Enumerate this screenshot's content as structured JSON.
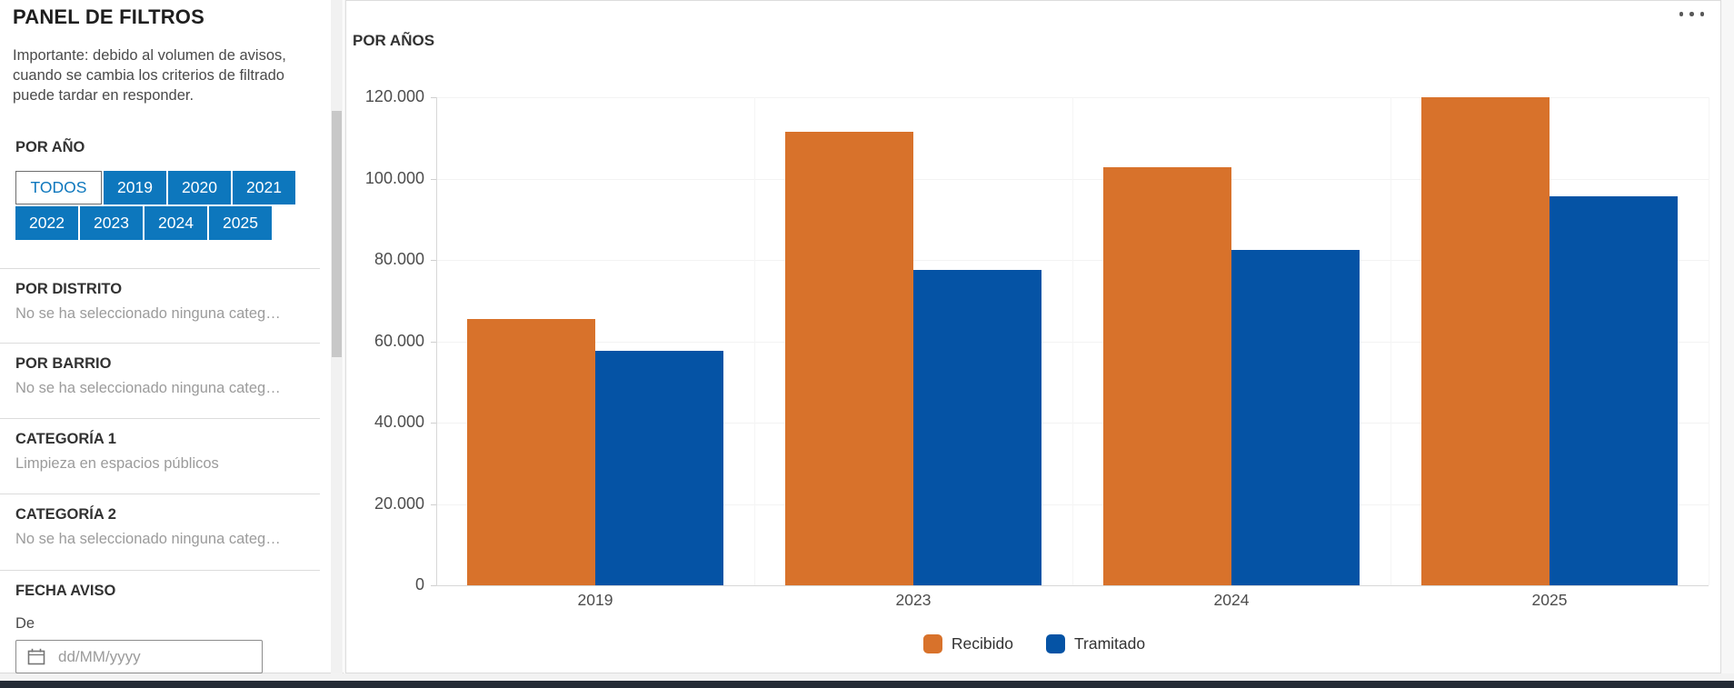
{
  "panel": {
    "title": "PANEL DE FILTROS",
    "notice": "Importante: debido al volumen de avisos, cuando se cambia los criterios de filtrado puede tardar en responder.",
    "year_filter": {
      "label": "POR AÑO",
      "options": [
        "TODOS",
        "2019",
        "2020",
        "2021",
        "2022",
        "2023",
        "2024",
        "2025"
      ],
      "selected": "TODOS"
    },
    "sections": [
      {
        "label": "POR DISTRITO",
        "value": "No se ha seleccionado ninguna categ…"
      },
      {
        "label": "POR BARRIO",
        "value": "No se ha seleccionado ninguna categ…"
      },
      {
        "label": "CATEGORÍA 1",
        "value": "Limpieza en espacios públicos"
      },
      {
        "label": "CATEGORÍA 2",
        "value": "No se ha seleccionado ninguna categ…"
      }
    ],
    "fecha_aviso": {
      "label": "FECHA AVISO",
      "from_label": "De",
      "date_placeholder": "dd/MM/yyyy"
    }
  },
  "chart_data": {
    "type": "bar",
    "title": "POR AÑOS",
    "categories": [
      "2019",
      "2023",
      "2024",
      "2025"
    ],
    "series": [
      {
        "name": "Recibido",
        "color": "#d8722b",
        "values": [
          65500,
          111400,
          102900,
          120100
        ]
      },
      {
        "name": "Tramitado",
        "color": "#0553a5",
        "values": [
          57700,
          77600,
          82500,
          95600
        ]
      }
    ],
    "ylim": [
      0,
      120000
    ],
    "y_tick_labels": [
      "0",
      "20.000",
      "40.000",
      "60.000",
      "80.000",
      "100.000",
      "120.000"
    ],
    "grid": "horizontal-light",
    "legend_position": "bottom"
  },
  "colors": {
    "accent_blue": "#0d77bd",
    "bar_orange": "#d8722b",
    "bar_blue": "#0553a5",
    "bottom_bar": "#242b35"
  }
}
